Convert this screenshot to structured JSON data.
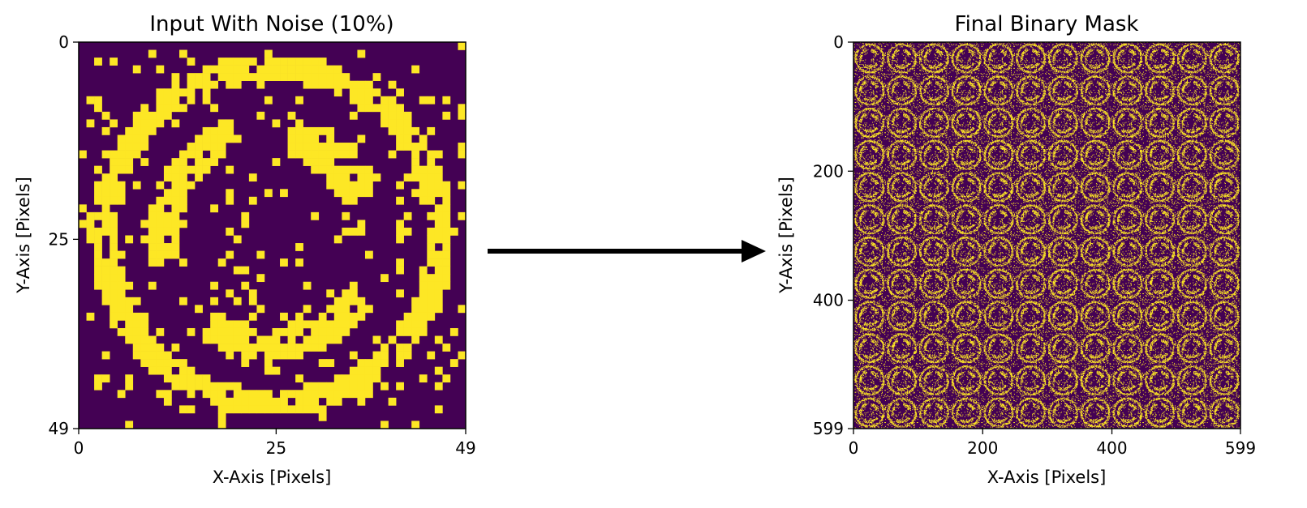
{
  "colors": {
    "background_pixel": "#440154",
    "foreground_pixel": "#fde725",
    "axis": "#000000",
    "arrow": "#000000"
  },
  "chart_data": [
    {
      "type": "heatmap",
      "title": "Input With Noise (10%)",
      "xlabel": "X-Axis [Pixels]",
      "ylabel": "Y-Axis [Pixels]",
      "xlim": [
        0,
        49
      ],
      "ylim": [
        49,
        0
      ],
      "xticks": [
        "0",
        "25",
        "49"
      ],
      "yticks": [
        "0",
        "25",
        "49"
      ],
      "grid_size": [
        50,
        50
      ],
      "noise_fraction": 0.1,
      "colormap": "viridis (binary)",
      "description_values": {
        "binary_values": [
          0,
          1
        ]
      }
    },
    {
      "type": "heatmap",
      "title": "Final Binary Mask",
      "xlabel": "X-Axis [Pixels]",
      "ylabel": "Y-Axis [Pixels]",
      "xlim": [
        0,
        599
      ],
      "ylim": [
        599,
        0
      ],
      "xticks": [
        "0",
        "200",
        "400",
        "599"
      ],
      "yticks": [
        "0",
        "200",
        "400",
        "599"
      ],
      "grid_size": [
        600,
        600
      ],
      "tiles": [
        12,
        12
      ],
      "colormap": "viridis (binary)",
      "description_values": {
        "binary_values": [
          0,
          1
        ]
      }
    }
  ],
  "arrow": {
    "direction": "right"
  }
}
